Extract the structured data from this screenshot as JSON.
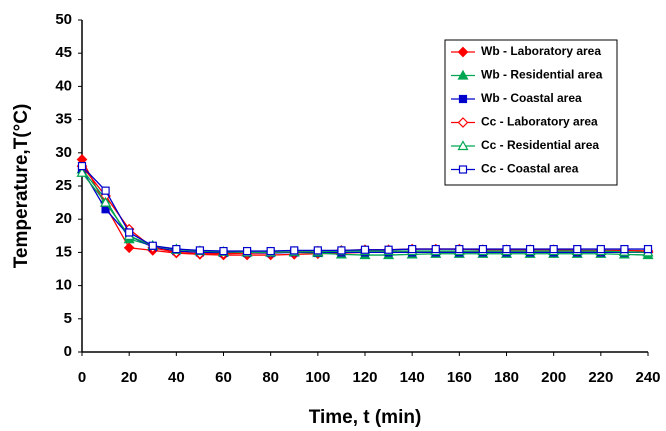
{
  "chart_data": {
    "type": "line",
    "x_label": "Time, t (min)",
    "y_label": "Temperature,T(°C)",
    "x": [
      0,
      10,
      20,
      30,
      40,
      50,
      60,
      70,
      80,
      90,
      100,
      110,
      120,
      130,
      140,
      150,
      160,
      170,
      180,
      190,
      200,
      210,
      220,
      230,
      240
    ],
    "xlim": [
      0,
      240
    ],
    "xticks": [
      0,
      20,
      40,
      60,
      80,
      100,
      120,
      140,
      160,
      180,
      200,
      220,
      240
    ],
    "ylim": [
      0,
      50
    ],
    "yticks": [
      0,
      5,
      10,
      15,
      20,
      25,
      30,
      35,
      40,
      45,
      50
    ],
    "legend": "upper right",
    "series": [
      {
        "name": "Wb - Laboratory area",
        "color": "#ff0000",
        "marker": "diamond",
        "filled": true,
        "values": [
          29,
          22,
          15.7,
          15.3,
          14.9,
          14.7,
          14.6,
          14.6,
          14.6,
          14.7,
          14.8,
          14.9,
          15,
          15,
          15,
          15,
          15,
          15,
          15,
          15,
          15,
          15,
          15,
          15,
          15
        ]
      },
      {
        "name": "Wb - Residential area",
        "color": "#00a651",
        "marker": "triangle",
        "filled": true,
        "values": [
          27.5,
          23,
          17,
          16,
          15.5,
          15.2,
          15,
          15,
          15,
          15,
          14.9,
          14.7,
          14.6,
          14.6,
          14.7,
          14.8,
          14.8,
          14.8,
          14.8,
          14.8,
          14.8,
          14.8,
          14.8,
          14.7,
          14.6
        ]
      },
      {
        "name": "Wb - Coastal area",
        "color": "#0000cc",
        "marker": "square",
        "filled": true,
        "values": [
          27.5,
          21.5,
          17.5,
          15.8,
          15.2,
          15,
          14.9,
          14.9,
          14.9,
          15,
          15,
          15,
          15,
          15,
          15,
          15,
          15,
          15,
          15,
          15,
          15,
          15,
          15,
          15,
          15
        ]
      },
      {
        "name": "Cc - Laboratory area",
        "color": "#ff0000",
        "marker": "diamond",
        "filled": false,
        "values": [
          28,
          23.5,
          18.5,
          15.7,
          15,
          14.8,
          14.8,
          14.9,
          15,
          15.1,
          15.2,
          15.3,
          15.4,
          15.4,
          15.5,
          15.5,
          15.5,
          15.4,
          15.4,
          15.4,
          15.4,
          15.3,
          15.3,
          15.3,
          15.2
        ]
      },
      {
        "name": "Cc - Residential area",
        "color": "#00a651",
        "marker": "triangle",
        "filled": false,
        "values": [
          27,
          22.5,
          17.5,
          16,
          15.4,
          15.2,
          15.1,
          15,
          15,
          15.1,
          15.1,
          15.2,
          15.2,
          15.2,
          15.2,
          15.2,
          15.2,
          15.2,
          15.2,
          15.2,
          15.2,
          15.2,
          15.2,
          15.1,
          15
        ]
      },
      {
        "name": "Cc - Coastal area",
        "color": "#0000cc",
        "marker": "square",
        "filled": false,
        "values": [
          28,
          24.3,
          18,
          16,
          15.5,
          15.3,
          15.2,
          15.2,
          15.2,
          15.3,
          15.3,
          15.3,
          15.4,
          15.4,
          15.5,
          15.5,
          15.5,
          15.5,
          15.5,
          15.5,
          15.5,
          15.5,
          15.5,
          15.5,
          15.5
        ]
      }
    ]
  }
}
